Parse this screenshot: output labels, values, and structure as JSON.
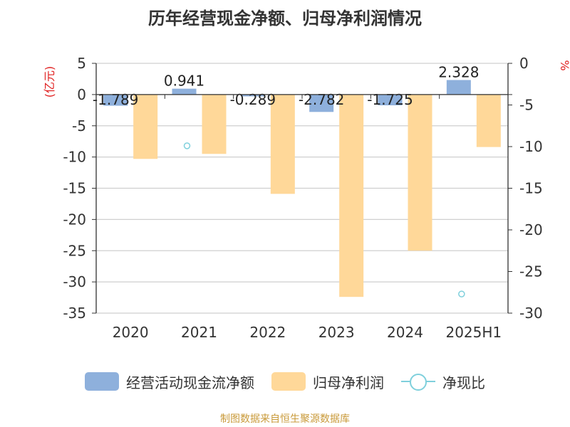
{
  "chart_data": {
    "type": "bar",
    "title": "历年经营现金净额、归母净利润情况",
    "left_axis_unit": "(亿元)",
    "right_axis_unit": "%",
    "categories": [
      "2020",
      "2021",
      "2022",
      "2023",
      "2024",
      "2025H1"
    ],
    "left_ylim": [
      -35,
      5
    ],
    "left_ticks": [
      5,
      0,
      -5,
      -10,
      -15,
      -20,
      -25,
      -30,
      -35
    ],
    "right_ylim": [
      -30,
      0
    ],
    "right_ticks": [
      0,
      -5,
      -10,
      -15,
      -20,
      -25,
      -30
    ],
    "grid": true,
    "series": [
      {
        "name": "经营活动现金流净额",
        "type": "bar",
        "axis": "left",
        "color": "#8eb0dc",
        "values": [
          -1.789,
          0.941,
          -0.289,
          -2.782,
          -1.725,
          2.328
        ],
        "labels": [
          "-1.789",
          "0.941",
          "-0.289",
          "-2.782",
          "-1.725",
          "2.328"
        ]
      },
      {
        "name": "归母净利润",
        "type": "bar",
        "axis": "left",
        "color": "#ffd899",
        "values": [
          -10.3,
          -9.5,
          -15.9,
          -32.4,
          -25.0,
          -8.4
        ]
      },
      {
        "name": "净现比",
        "type": "point",
        "axis": "right",
        "color": "#7fd0dc",
        "values": [
          null,
          -9.9,
          null,
          null,
          null,
          -27.7
        ]
      }
    ],
    "legend_position": "bottom"
  },
  "source": {
    "text": "制图数据来自恒生聚源数据库",
    "color": "#c99a3a"
  }
}
